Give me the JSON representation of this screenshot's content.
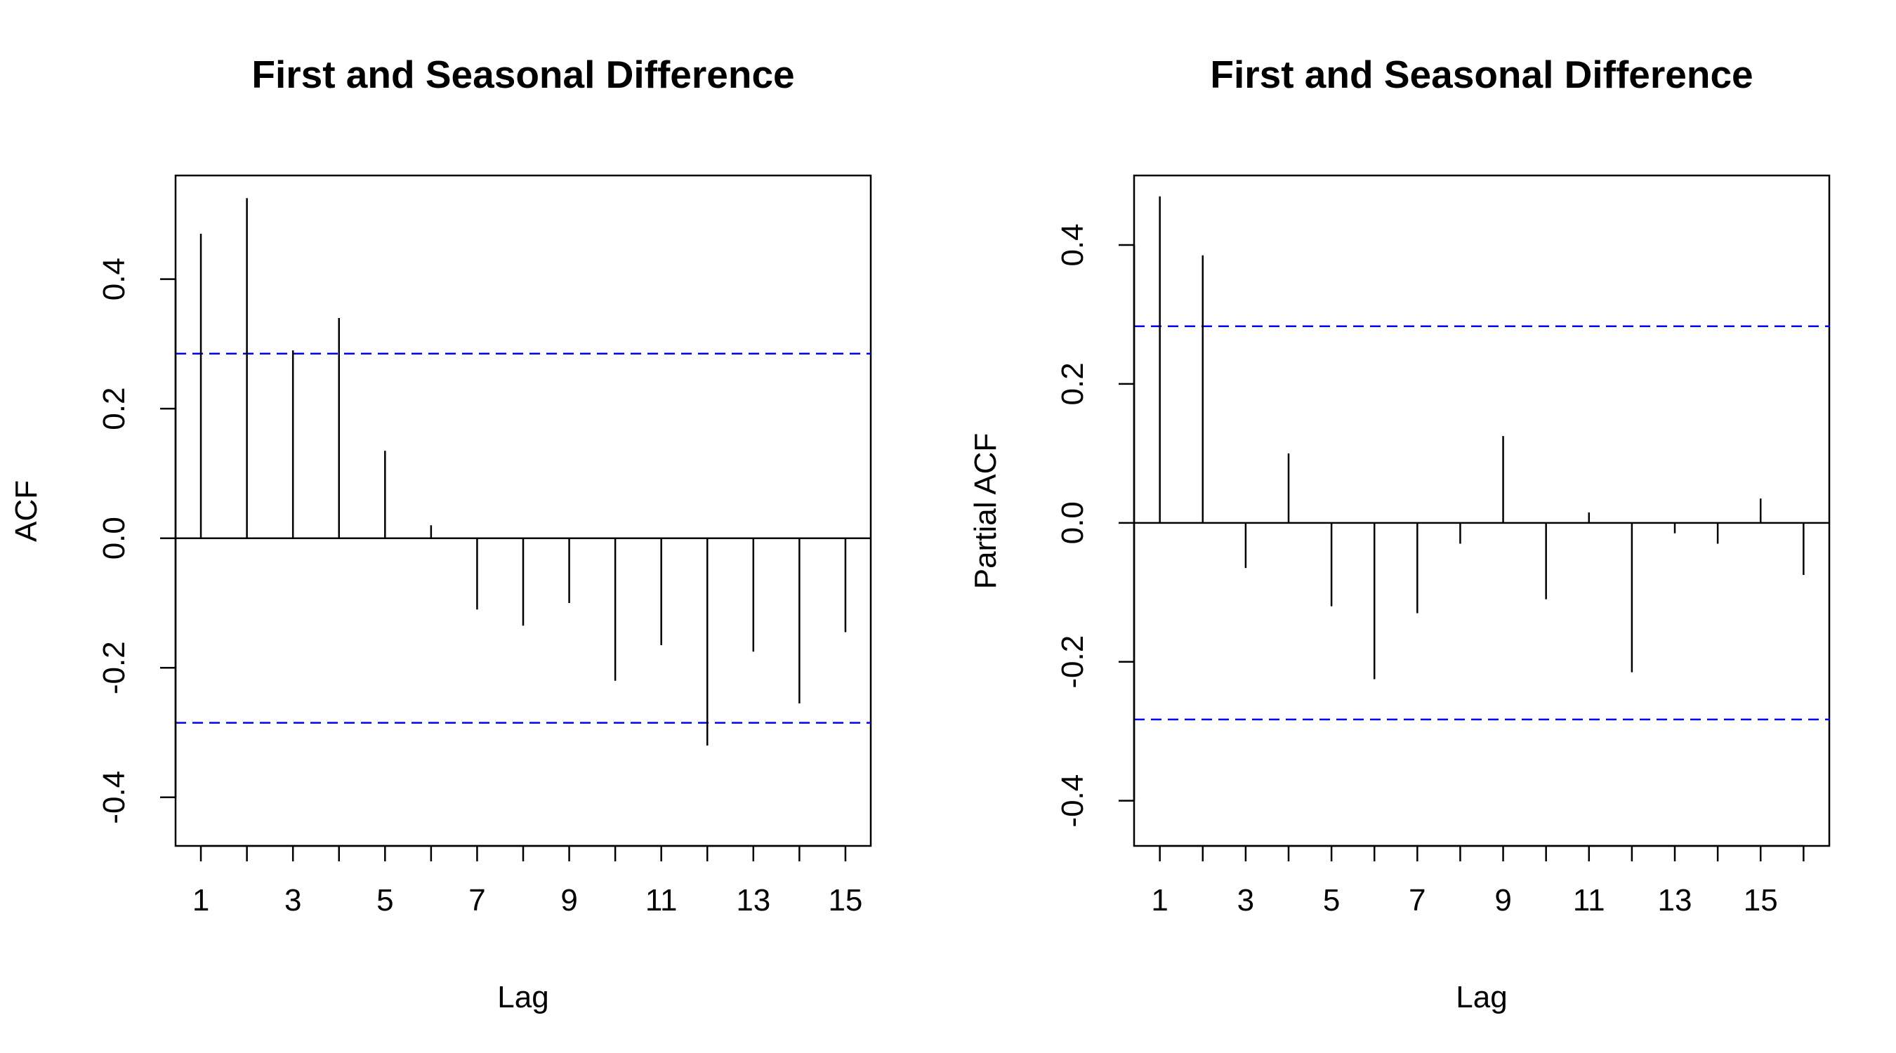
{
  "chart_data": [
    {
      "type": "bar",
      "title": "First and Seasonal Difference",
      "xlabel": "Lag",
      "ylabel": "ACF",
      "x_ticks": [
        1,
        3,
        5,
        7,
        9,
        11,
        13,
        15
      ],
      "y_ticks": [
        -0.4,
        -0.2,
        0.0,
        0.2,
        0.4
      ],
      "y_tick_labels": [
        "-0.4",
        "-0.2",
        "0.0",
        "0.2",
        "0.4"
      ],
      "xlim": [
        0.45,
        15.55
      ],
      "ylim": [
        -0.475,
        0.56
      ],
      "confidence_bound": 0.285,
      "bound_color": "#0000ff",
      "x": [
        1,
        2,
        3,
        4,
        5,
        6,
        7,
        8,
        9,
        10,
        11,
        12,
        13,
        14,
        15
      ],
      "values": [
        0.47,
        0.525,
        0.29,
        0.34,
        0.135,
        0.02,
        -0.11,
        -0.135,
        -0.1,
        -0.22,
        -0.165,
        -0.32,
        -0.175,
        -0.255,
        -0.145
      ],
      "grid": false,
      "legend": "none"
    },
    {
      "type": "bar",
      "title": "First and Seasonal Difference",
      "xlabel": "Lag",
      "ylabel": "Partial ACF",
      "x_ticks": [
        1,
        3,
        5,
        7,
        9,
        11,
        13,
        15
      ],
      "y_ticks": [
        -0.4,
        -0.2,
        0.0,
        0.2,
        0.4
      ],
      "y_tick_labels": [
        "-0.4",
        "-0.2",
        "0.0",
        "0.2",
        "0.4"
      ],
      "xlim": [
        0.4,
        16.6
      ],
      "ylim": [
        -0.465,
        0.5
      ],
      "confidence_bound": 0.283,
      "bound_color": "#0000ff",
      "x": [
        1,
        2,
        3,
        4,
        5,
        6,
        7,
        8,
        9,
        10,
        11,
        12,
        13,
        14,
        15,
        16
      ],
      "values": [
        0.47,
        0.385,
        -0.065,
        0.1,
        -0.12,
        -0.225,
        -0.13,
        -0.03,
        0.125,
        -0.11,
        0.015,
        -0.215,
        -0.015,
        -0.03,
        0.035,
        -0.075
      ],
      "grid": false,
      "legend": "none"
    }
  ]
}
